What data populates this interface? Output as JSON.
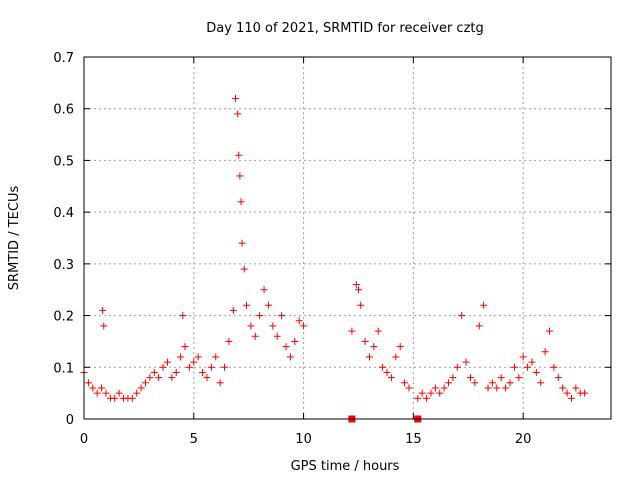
{
  "chart_data": {
    "type": "scatter",
    "title": "Day 110 of 2021, SRMTID for receiver cztg",
    "xlabel": "GPS time / hours",
    "ylabel": "SRMTID / TECUs",
    "xlim": [
      0,
      24
    ],
    "ylim": [
      0,
      0.7
    ],
    "grid": true,
    "x_ticks": [
      0,
      5,
      10,
      15,
      20
    ],
    "x_tick_labels": [
      "0",
      "5",
      "10",
      "15",
      "20"
    ],
    "y_ticks": [
      0,
      0.1,
      0.2,
      0.3,
      0.4,
      0.5,
      0.6,
      0.7
    ],
    "y_tick_labels": [
      "0",
      "0.1",
      "0.2",
      "0.3",
      "0.4",
      "0.5",
      "0.6",
      "0.7"
    ],
    "marker": "plus",
    "color": "#ff0000",
    "series": [
      {
        "name": "SRMTID",
        "x": [
          0.0,
          0.2,
          0.4,
          0.6,
          0.8,
          0.85,
          0.9,
          1.0,
          1.2,
          1.4,
          1.6,
          1.8,
          2.0,
          2.2,
          2.4,
          2.6,
          2.8,
          3.0,
          3.2,
          3.4,
          3.6,
          3.8,
          4.0,
          4.2,
          4.4,
          4.5,
          4.6,
          4.8,
          5.0,
          5.2,
          5.4,
          5.6,
          5.8,
          6.0,
          6.2,
          6.4,
          6.6,
          6.8,
          6.9,
          7.0,
          7.05,
          7.1,
          7.15,
          7.2,
          7.3,
          7.4,
          7.6,
          7.8,
          8.0,
          8.2,
          8.4,
          8.6,
          8.8,
          9.0,
          9.2,
          9.4,
          9.6,
          9.8,
          10.0,
          12.2,
          12.4,
          12.5,
          12.6,
          12.8,
          13.0,
          13.2,
          13.4,
          13.6,
          13.8,
          14.0,
          14.2,
          14.4,
          14.6,
          14.8,
          15.2,
          15.4,
          15.6,
          15.8,
          16.0,
          16.2,
          16.4,
          16.6,
          16.8,
          17.0,
          17.2,
          17.4,
          17.6,
          17.8,
          18.0,
          18.2,
          18.4,
          18.6,
          18.8,
          19.0,
          19.2,
          19.4,
          19.6,
          19.8,
          20.0,
          20.2,
          20.4,
          20.6,
          20.8,
          21.0,
          21.2,
          21.4,
          21.6,
          21.8,
          22.0,
          22.2,
          22.4,
          22.6,
          22.8
        ],
        "y": [
          0.09,
          0.07,
          0.06,
          0.05,
          0.06,
          0.21,
          0.18,
          0.05,
          0.04,
          0.04,
          0.05,
          0.04,
          0.04,
          0.04,
          0.05,
          0.06,
          0.07,
          0.08,
          0.09,
          0.08,
          0.1,
          0.11,
          0.08,
          0.09,
          0.12,
          0.2,
          0.14,
          0.1,
          0.11,
          0.12,
          0.09,
          0.08,
          0.1,
          0.12,
          0.07,
          0.1,
          0.15,
          0.21,
          0.62,
          0.59,
          0.51,
          0.47,
          0.42,
          0.34,
          0.29,
          0.22,
          0.18,
          0.16,
          0.2,
          0.25,
          0.22,
          0.18,
          0.16,
          0.2,
          0.14,
          0.12,
          0.15,
          0.19,
          0.18,
          0.17,
          0.26,
          0.25,
          0.22,
          0.15,
          0.12,
          0.14,
          0.17,
          0.1,
          0.09,
          0.08,
          0.12,
          0.14,
          0.07,
          0.06,
          0.04,
          0.05,
          0.04,
          0.05,
          0.06,
          0.05,
          0.06,
          0.07,
          0.08,
          0.1,
          0.2,
          0.11,
          0.08,
          0.07,
          0.18,
          0.22,
          0.06,
          0.07,
          0.06,
          0.08,
          0.06,
          0.07,
          0.1,
          0.08,
          0.12,
          0.1,
          0.11,
          0.09,
          0.07,
          0.13,
          0.17,
          0.1,
          0.08,
          0.06,
          0.05,
          0.04,
          0.06,
          0.05,
          0.05
        ]
      }
    ],
    "zero_markers_x": [
      12.2,
      15.2
    ]
  }
}
